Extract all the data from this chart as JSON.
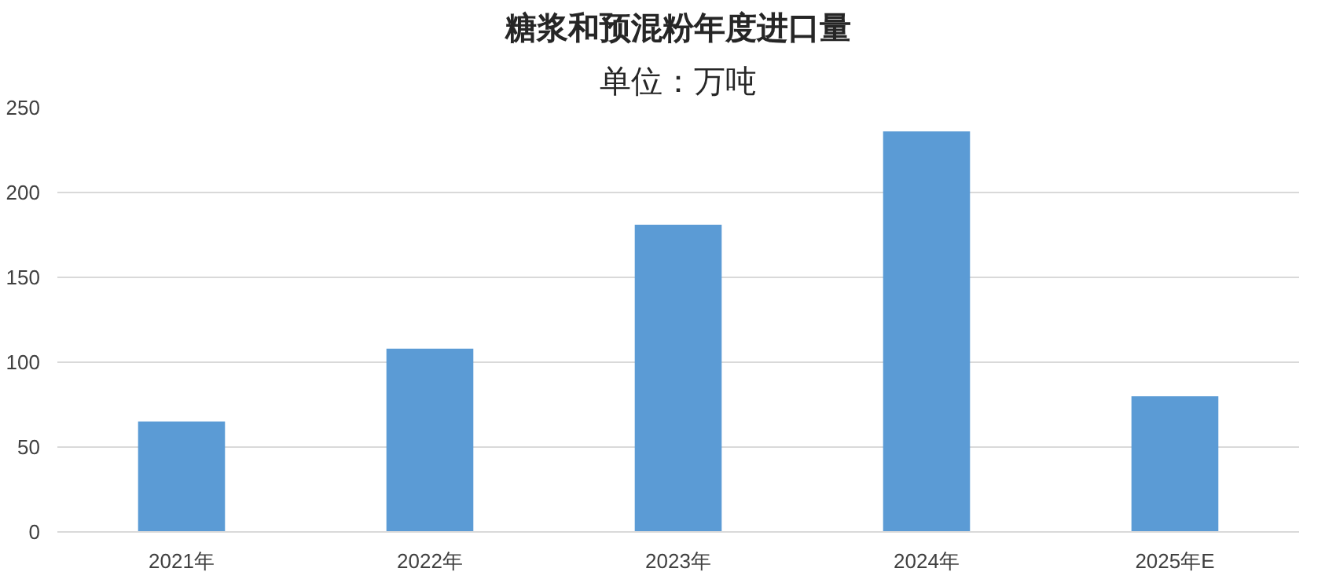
{
  "chart_data": {
    "type": "bar",
    "title": "糖浆和预混粉年度进口量",
    "subtitle": "单位：万吨",
    "categories": [
      "2021年",
      "2022年",
      "2023年",
      "2024年",
      "2025年E"
    ],
    "values": [
      65,
      108,
      181,
      236,
      80
    ],
    "color": "#5b9bd5",
    "ylim": [
      0,
      250
    ],
    "yticks": [
      0,
      50,
      100,
      150,
      200,
      250
    ],
    "grid": "y"
  }
}
